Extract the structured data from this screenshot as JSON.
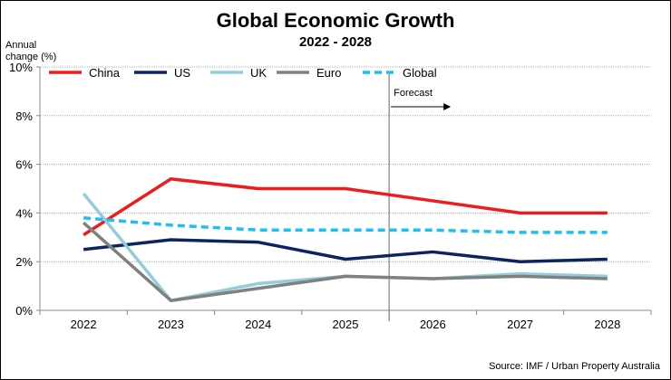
{
  "chart_data": {
    "type": "line",
    "title": "Global Economic Growth",
    "subtitle": "2022 - 2028",
    "ylabel": "Annual change (%)",
    "xlabel": "",
    "categories": [
      "2022",
      "2023",
      "2024",
      "2025",
      "2026",
      "2027",
      "2028"
    ],
    "ylim": [
      0,
      10
    ],
    "yticks": [
      "0%",
      "2%",
      "4%",
      "6%",
      "8%",
      "10%"
    ],
    "grid": true,
    "legend_position": "top",
    "series": [
      {
        "name": "China",
        "color": "#ee1c1c",
        "dashed": false,
        "values": [
          3.1,
          5.4,
          5.0,
          5.0,
          4.5,
          4.0,
          4.0
        ]
      },
      {
        "name": "US",
        "color": "#0d2461",
        "dashed": false,
        "values": [
          2.5,
          2.9,
          2.8,
          2.1,
          2.4,
          2.0,
          2.1
        ]
      },
      {
        "name": "UK",
        "color": "#92cddc",
        "dashed": false,
        "values": [
          4.8,
          0.4,
          1.1,
          1.4,
          1.3,
          1.5,
          1.4
        ]
      },
      {
        "name": "Euro",
        "color": "#808080",
        "dashed": false,
        "values": [
          3.6,
          0.4,
          0.9,
          1.4,
          1.3,
          1.4,
          1.3
        ]
      },
      {
        "name": "Global",
        "color": "#1fbff0",
        "dashed": true,
        "values": [
          3.8,
          3.5,
          3.3,
          3.3,
          3.3,
          3.2,
          3.2
        ]
      }
    ],
    "annotation": {
      "text": "Forecast",
      "x_between": [
        "2025",
        "2026"
      ]
    },
    "source": "Source: IMF / Urban Property Australia"
  }
}
